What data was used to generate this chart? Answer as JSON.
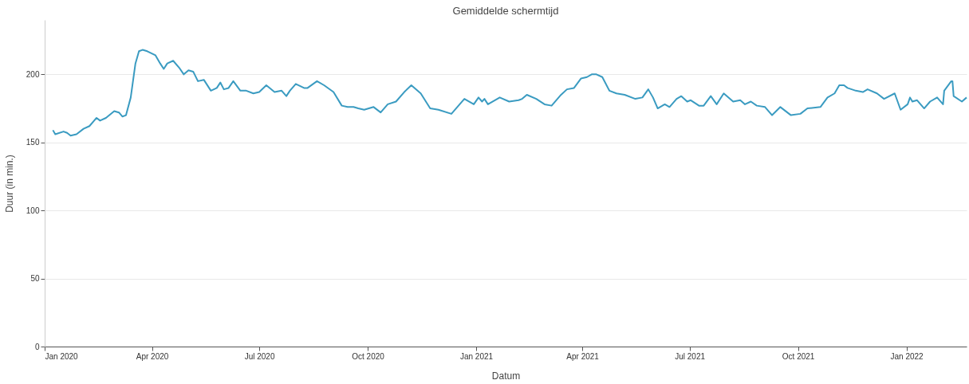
{
  "chart_data": {
    "type": "line",
    "title": "Gemiddelde schermtijd",
    "xlabel": "Datum",
    "ylabel": "Duur (in min.)",
    "x": [
      "2020-01-08",
      "2020-01-10",
      "2020-01-17",
      "2020-01-20",
      "2020-01-23",
      "2020-01-28",
      "2020-02-03",
      "2020-02-08",
      "2020-02-12",
      "2020-02-14",
      "2020-02-17",
      "2020-02-22",
      "2020-02-29",
      "2020-03-04",
      "2020-03-07",
      "2020-03-10",
      "2020-03-14",
      "2020-03-18",
      "2020-03-21",
      "2020-03-24",
      "2020-03-28",
      "2020-04-04",
      "2020-04-08",
      "2020-04-11",
      "2020-04-14",
      "2020-04-19",
      "2020-04-24",
      "2020-04-28",
      "2020-05-02",
      "2020-05-06",
      "2020-05-10",
      "2020-05-15",
      "2020-05-21",
      "2020-05-26",
      "2020-05-29",
      "2020-06-01",
      "2020-06-05",
      "2020-06-09",
      "2020-06-15",
      "2020-06-20",
      "2020-06-26",
      "2020-07-01",
      "2020-07-07",
      "2020-07-14",
      "2020-07-20",
      "2020-07-24",
      "2020-07-27",
      "2020-08-01",
      "2020-08-08",
      "2020-08-11",
      "2020-08-19",
      "2020-08-25",
      "2020-09-02",
      "2020-09-09",
      "2020-09-14",
      "2020-09-19",
      "2020-09-23",
      "2020-09-28",
      "2020-10-06",
      "2020-10-12",
      "2020-10-18",
      "2020-10-25",
      "2020-11-01",
      "2020-11-07",
      "2020-11-15",
      "2020-11-23",
      "2020-11-30",
      "2020-12-11",
      "2020-12-22",
      "2020-12-30",
      "2021-01-03",
      "2021-01-06",
      "2021-01-08",
      "2021-01-11",
      "2021-01-21",
      "2021-01-29",
      "2021-02-06",
      "2021-02-09",
      "2021-02-13",
      "2021-02-21",
      "2021-02-28",
      "2021-03-06",
      "2021-03-14",
      "2021-03-19",
      "2021-03-25",
      "2021-03-31",
      "2021-04-05",
      "2021-04-09",
      "2021-04-13",
      "2021-04-18",
      "2021-04-24",
      "2021-04-30",
      "2021-05-07",
      "2021-05-16",
      "2021-05-22",
      "2021-05-27",
      "2021-05-31",
      "2021-06-04",
      "2021-06-10",
      "2021-06-14",
      "2021-06-20",
      "2021-06-24",
      "2021-06-29",
      "2021-07-02",
      "2021-07-09",
      "2021-07-13",
      "2021-07-19",
      "2021-07-24",
      "2021-07-30",
      "2021-08-07",
      "2021-08-13",
      "2021-08-17",
      "2021-08-22",
      "2021-08-27",
      "2021-09-03",
      "2021-09-09",
      "2021-09-16",
      "2021-09-25",
      "2021-10-03",
      "2021-10-09",
      "2021-10-20",
      "2021-10-26",
      "2021-11-01",
      "2021-11-05",
      "2021-11-09",
      "2021-11-12",
      "2021-11-19",
      "2021-11-25",
      "2021-11-29",
      "2021-12-07",
      "2021-12-13",
      "2021-12-22",
      "2021-12-27",
      "2022-01-02",
      "2022-01-04",
      "2022-01-06",
      "2022-01-10",
      "2022-01-16",
      "2022-01-21",
      "2022-01-27",
      "2022-02-01",
      "2022-02-02",
      "2022-02-08",
      "2022-02-09",
      "2022-02-10",
      "2022-02-17",
      "2022-02-21"
    ],
    "series": [
      {
        "color": "#3a9bc1",
        "values": [
          159,
          156,
          158,
          157,
          155,
          156,
          160,
          162,
          166,
          168,
          166,
          168,
          173,
          172,
          169,
          170,
          183,
          208,
          217,
          218,
          217,
          214,
          208,
          204,
          208,
          210,
          205,
          200,
          203,
          202,
          195,
          196,
          188,
          190,
          194,
          189,
          190,
          195,
          188,
          188,
          186,
          187,
          192,
          187,
          188,
          184,
          188,
          193,
          190,
          190,
          195,
          192,
          187,
          177,
          176,
          176,
          175,
          174,
          176,
          172,
          178,
          180,
          187,
          192,
          186,
          175,
          174,
          171,
          182,
          178,
          183,
          180,
          182,
          178,
          183,
          180,
          181,
          182,
          185,
          182,
          178,
          177,
          185,
          189,
          190,
          197,
          198,
          200,
          200,
          198,
          188,
          186,
          185,
          182,
          183,
          189,
          183,
          175,
          178,
          176,
          182,
          184,
          180,
          181,
          177,
          177,
          184,
          178,
          186,
          180,
          181,
          178,
          180,
          177,
          176,
          170,
          176,
          170,
          171,
          175,
          176,
          183,
          186,
          192,
          192,
          190,
          188,
          187,
          189,
          186,
          182,
          186,
          174,
          178,
          183,
          180,
          181,
          175,
          180,
          183,
          178,
          188,
          195,
          195,
          184,
          180,
          183
        ]
      }
    ],
    "xlim": [
      "2020-01-01",
      "2022-02-21"
    ],
    "xticks": [
      {
        "value": "2020-01-01",
        "label": "Jan 2020"
      },
      {
        "value": "2020-04-01",
        "label": "Apr 2020"
      },
      {
        "value": "2020-07-01",
        "label": "Jul 2020"
      },
      {
        "value": "2020-10-01",
        "label": "Oct 2020"
      },
      {
        "value": "2021-01-01",
        "label": "Jan 2021"
      },
      {
        "value": "2021-04-01",
        "label": "Apr 2021"
      },
      {
        "value": "2021-07-01",
        "label": "Jul 2021"
      },
      {
        "value": "2021-10-01",
        "label": "Oct 2021"
      },
      {
        "value": "2022-01-01",
        "label": "Jan 2022"
      }
    ],
    "ylim": [
      0,
      240
    ],
    "yticks": [
      0,
      50,
      100,
      150,
      200
    ],
    "grid": "y",
    "marker": "none",
    "line_style": "solid"
  }
}
